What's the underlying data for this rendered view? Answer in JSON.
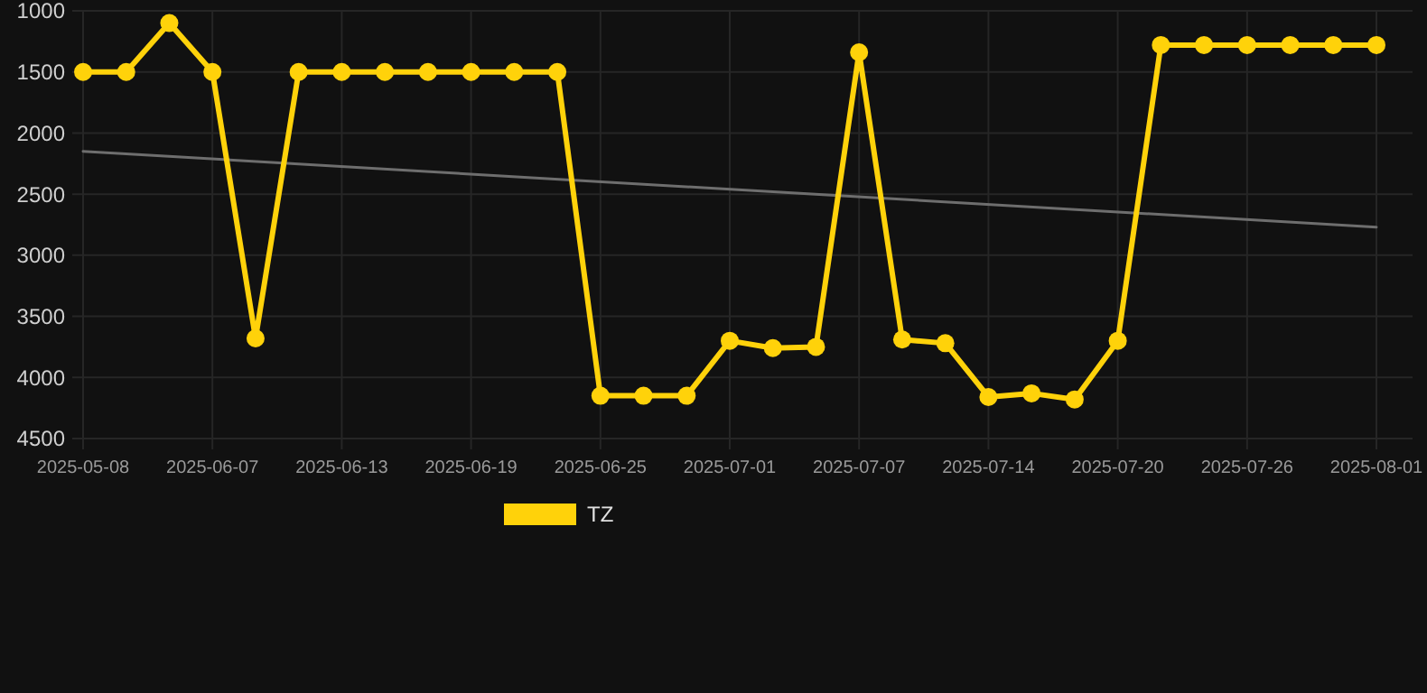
{
  "chart_data": {
    "type": "line",
    "categories": [
      "2025-05-08",
      null,
      null,
      "2025-06-07",
      null,
      null,
      "2025-06-13",
      null,
      null,
      "2025-06-19",
      null,
      null,
      "2025-06-25",
      null,
      null,
      "2025-07-01",
      null,
      null,
      "2025-07-07",
      null,
      null,
      "2025-07-14",
      null,
      null,
      "2025-07-20",
      null,
      null,
      "2025-07-26",
      null,
      null,
      "2025-08-01"
    ],
    "series": [
      {
        "name": "TZ",
        "color": "#ffd20a",
        "marker": "circle",
        "values": [
          1500,
          1500,
          1100,
          1500,
          3680,
          1500,
          1500,
          1500,
          1500,
          1500,
          1500,
          1500,
          4150,
          4150,
          4150,
          3700,
          3760,
          3750,
          1340,
          3690,
          3720,
          4160,
          4130,
          4180,
          3700,
          1280,
          1280,
          1280,
          1280,
          1280,
          1280
        ]
      },
      {
        "color": "#6e6e6e",
        "marker": "none",
        "values": [
          2150,
          null,
          null,
          null,
          null,
          null,
          null,
          null,
          null,
          null,
          null,
          null,
          null,
          null,
          null,
          null,
          null,
          null,
          null,
          null,
          null,
          null,
          null,
          null,
          null,
          null,
          null,
          null,
          null,
          null,
          2770
        ]
      }
    ],
    "ylim": [
      4500,
      1000
    ],
    "yticks": [
      1000,
      1500,
      2000,
      2500,
      3000,
      3500,
      4000,
      4500
    ],
    "grid": true,
    "legend": "bottom"
  }
}
